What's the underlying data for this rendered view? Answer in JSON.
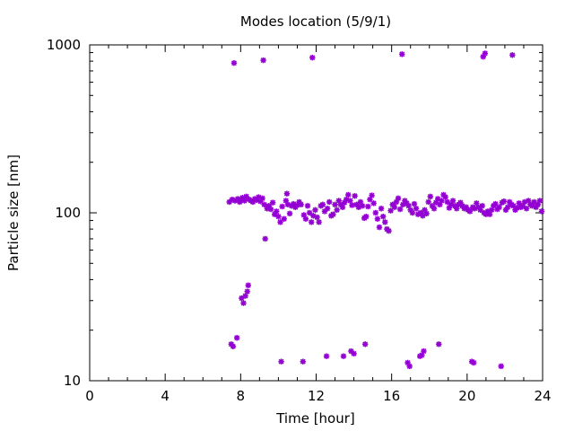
{
  "chart_data": {
    "type": "scatter",
    "title": "Modes location (5/9/1)",
    "xlabel": "Time [hour]",
    "ylabel": "Particle size [nm]",
    "xlim": [
      0,
      24
    ],
    "ylim": [
      10,
      1000
    ],
    "yscale": "log",
    "xticks": [
      0,
      4,
      8,
      12,
      16,
      20,
      24
    ],
    "xtick_labels": [
      "0",
      "4",
      "8",
      "12",
      "16",
      "20",
      "24"
    ],
    "yticks": [
      10,
      100,
      1000
    ],
    "ytick_labels": [
      "10",
      "100",
      "1000"
    ],
    "grid": false,
    "marker_color": "#9400D3",
    "marker": "asterisk",
    "points": [
      [
        7.4,
        116
      ],
      [
        7.5,
        16.5
      ],
      [
        7.55,
        120
      ],
      [
        7.6,
        16
      ],
      [
        7.65,
        780
      ],
      [
        7.7,
        118
      ],
      [
        7.8,
        18
      ],
      [
        7.85,
        121
      ],
      [
        7.95,
        116
      ],
      [
        8.0,
        119
      ],
      [
        8.05,
        31
      ],
      [
        8.1,
        123
      ],
      [
        8.15,
        29
      ],
      [
        8.2,
        118
      ],
      [
        8.25,
        32
      ],
      [
        8.3,
        125
      ],
      [
        8.35,
        34
      ],
      [
        8.4,
        37
      ],
      [
        8.45,
        120
      ],
      [
        8.55,
        118
      ],
      [
        8.65,
        116
      ],
      [
        8.75,
        121
      ],
      [
        8.85,
        119
      ],
      [
        8.95,
        124
      ],
      [
        9.05,
        117
      ],
      [
        9.15,
        122
      ],
      [
        9.2,
        810
      ],
      [
        9.25,
        112
      ],
      [
        9.3,
        70
      ],
      [
        9.4,
        106
      ],
      [
        9.5,
        110
      ],
      [
        9.6,
        105
      ],
      [
        9.7,
        115
      ],
      [
        9.8,
        98
      ],
      [
        9.9,
        102
      ],
      [
        10.0,
        95
      ],
      [
        10.1,
        88
      ],
      [
        10.15,
        13
      ],
      [
        10.2,
        109
      ],
      [
        10.3,
        92
      ],
      [
        10.4,
        118
      ],
      [
        10.45,
        130
      ],
      [
        10.5,
        112
      ],
      [
        10.6,
        99
      ],
      [
        10.7,
        110
      ],
      [
        10.8,
        113
      ],
      [
        10.9,
        108
      ],
      [
        11.0,
        111
      ],
      [
        11.1,
        116
      ],
      [
        11.2,
        112
      ],
      [
        11.3,
        13
      ],
      [
        11.35,
        97
      ],
      [
        11.45,
        92
      ],
      [
        11.55,
        110
      ],
      [
        11.65,
        100
      ],
      [
        11.75,
        88
      ],
      [
        11.8,
        840
      ],
      [
        11.85,
        96
      ],
      [
        11.95,
        104
      ],
      [
        12.05,
        94
      ],
      [
        12.15,
        88
      ],
      [
        12.25,
        110
      ],
      [
        12.35,
        112
      ],
      [
        12.45,
        102
      ],
      [
        12.55,
        14
      ],
      [
        12.6,
        106
      ],
      [
        12.7,
        116
      ],
      [
        12.8,
        96
      ],
      [
        12.9,
        98
      ],
      [
        13.0,
        112
      ],
      [
        13.1,
        104
      ],
      [
        13.2,
        118
      ],
      [
        13.3,
        112
      ],
      [
        13.4,
        108
      ],
      [
        13.45,
        14
      ],
      [
        13.5,
        115
      ],
      [
        13.6,
        120
      ],
      [
        13.7,
        128
      ],
      [
        13.8,
        118
      ],
      [
        13.85,
        15
      ],
      [
        13.9,
        111
      ],
      [
        14.0,
        14.5
      ],
      [
        14.05,
        126
      ],
      [
        14.15,
        112
      ],
      [
        14.25,
        108
      ],
      [
        14.35,
        116
      ],
      [
        14.45,
        110
      ],
      [
        14.55,
        93
      ],
      [
        14.6,
        16.5
      ],
      [
        14.65,
        95
      ],
      [
        14.75,
        109
      ],
      [
        14.85,
        120
      ],
      [
        14.95,
        127
      ],
      [
        15.05,
        114
      ],
      [
        15.15,
        100
      ],
      [
        15.25,
        92
      ],
      [
        15.35,
        82
      ],
      [
        15.45,
        106
      ],
      [
        15.55,
        95
      ],
      [
        15.65,
        88
      ],
      [
        15.75,
        80
      ],
      [
        15.85,
        78
      ],
      [
        15.95,
        103
      ],
      [
        16.05,
        112
      ],
      [
        16.15,
        108
      ],
      [
        16.25,
        116
      ],
      [
        16.35,
        122
      ],
      [
        16.45,
        105
      ],
      [
        16.55,
        880
      ],
      [
        16.6,
        112
      ],
      [
        16.7,
        118
      ],
      [
        16.8,
        114
      ],
      [
        16.85,
        12.8
      ],
      [
        16.9,
        110
      ],
      [
        16.95,
        12.2
      ],
      [
        17.0,
        104
      ],
      [
        17.1,
        100
      ],
      [
        17.2,
        113
      ],
      [
        17.3,
        106
      ],
      [
        17.4,
        98
      ],
      [
        17.5,
        14
      ],
      [
        17.55,
        100
      ],
      [
        17.6,
        14.2
      ],
      [
        17.65,
        96
      ],
      [
        17.7,
        15
      ],
      [
        17.75,
        104
      ],
      [
        17.85,
        99
      ],
      [
        17.95,
        116
      ],
      [
        18.05,
        125
      ],
      [
        18.15,
        110
      ],
      [
        18.25,
        106
      ],
      [
        18.35,
        115
      ],
      [
        18.45,
        121
      ],
      [
        18.5,
        16.5
      ],
      [
        18.55,
        112
      ],
      [
        18.65,
        118
      ],
      [
        18.75,
        128
      ],
      [
        18.85,
        124
      ],
      [
        18.95,
        116
      ],
      [
        19.05,
        107
      ],
      [
        19.15,
        112
      ],
      [
        19.25,
        118
      ],
      [
        19.35,
        110
      ],
      [
        19.45,
        106
      ],
      [
        19.55,
        112
      ],
      [
        19.65,
        115
      ],
      [
        19.75,
        110
      ],
      [
        19.85,
        106
      ],
      [
        19.95,
        108
      ],
      [
        20.05,
        104
      ],
      [
        20.15,
        102
      ],
      [
        20.25,
        13
      ],
      [
        20.3,
        108
      ],
      [
        20.35,
        12.8
      ],
      [
        20.4,
        106
      ],
      [
        20.5,
        114
      ],
      [
        20.6,
        108
      ],
      [
        20.7,
        104
      ],
      [
        20.8,
        110
      ],
      [
        20.85,
        850
      ],
      [
        20.9,
        100
      ],
      [
        20.95,
        890
      ],
      [
        21.0,
        98
      ],
      [
        21.1,
        102
      ],
      [
        21.2,
        98
      ],
      [
        21.3,
        104
      ],
      [
        21.4,
        110
      ],
      [
        21.5,
        113
      ],
      [
        21.6,
        105
      ],
      [
        21.7,
        108
      ],
      [
        21.8,
        12.2
      ],
      [
        21.85,
        115
      ],
      [
        21.95,
        117
      ],
      [
        22.05,
        104
      ],
      [
        22.15,
        108
      ],
      [
        22.25,
        116
      ],
      [
        22.35,
        112
      ],
      [
        22.4,
        870
      ],
      [
        22.45,
        110
      ],
      [
        22.55,
        104
      ],
      [
        22.65,
        107
      ],
      [
        22.75,
        114
      ],
      [
        22.85,
        108
      ],
      [
        22.95,
        110
      ],
      [
        23.05,
        116
      ],
      [
        23.15,
        106
      ],
      [
        23.25,
        118
      ],
      [
        23.35,
        112
      ],
      [
        23.45,
        110
      ],
      [
        23.55,
        116
      ],
      [
        23.65,
        108
      ],
      [
        23.75,
        112
      ],
      [
        23.85,
        118
      ],
      [
        23.95,
        102
      ]
    ]
  }
}
